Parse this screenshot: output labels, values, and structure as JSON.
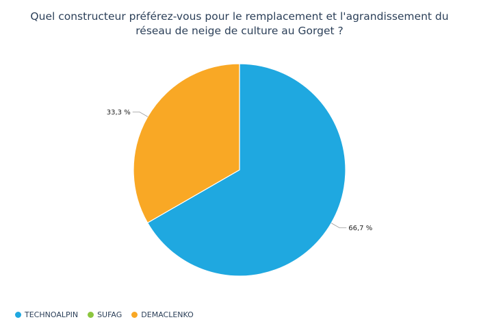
{
  "chart_data": {
    "type": "pie",
    "title": "Quel constructeur préférez-vous pour le remplacement et l'agrandissement du réseau de neige de culture au Gorget ?",
    "categories": [
      "TECHNOALPIN",
      "SUFAG",
      "DEMACLENKO"
    ],
    "values": [
      66.7,
      0,
      33.3
    ],
    "value_labels": [
      "66,7 %",
      "",
      "33,3 %"
    ],
    "colors": [
      "#1fa8e0",
      "#8cc63f",
      "#f9a825"
    ],
    "legend_position": "bottom-left"
  }
}
